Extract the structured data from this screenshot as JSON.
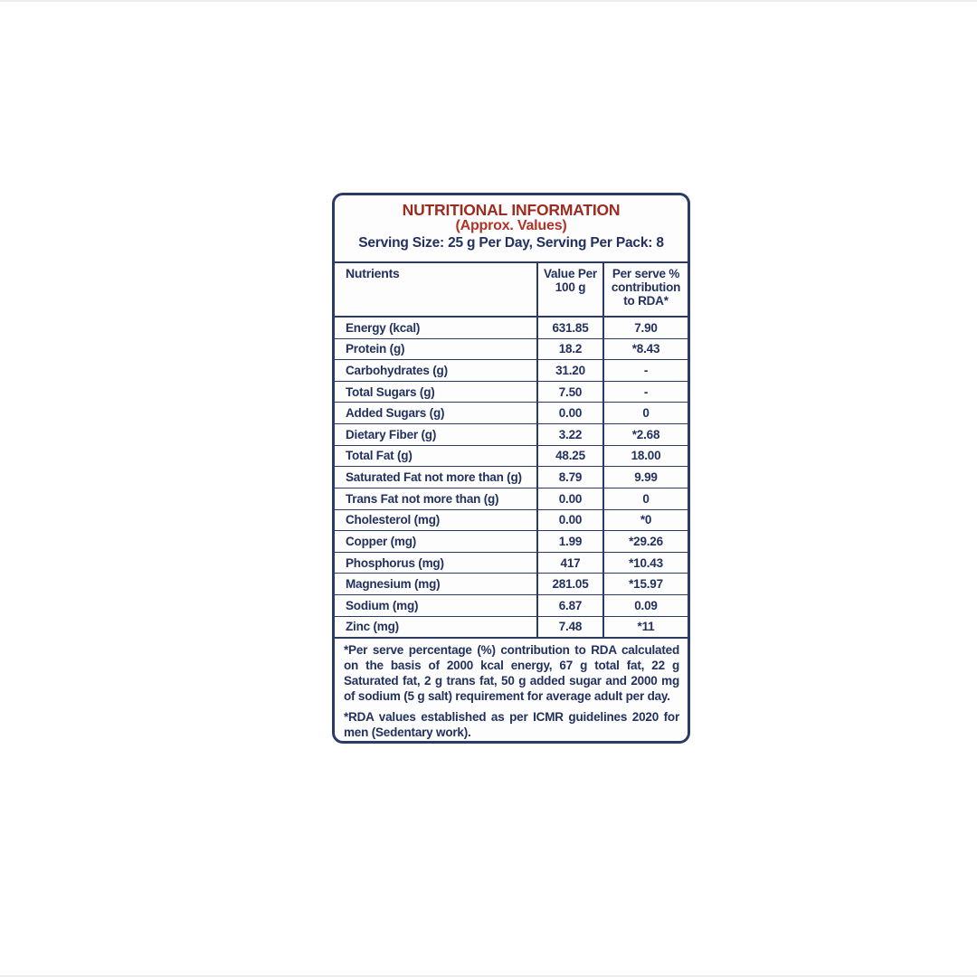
{
  "label": {
    "title": "NUTRITIONAL INFORMATION",
    "subtitle": "(Approx. Values)",
    "serving_line": "Serving Size: 25 g Per Day, Serving Per Pack: 8",
    "header": {
      "nutrients": "Nutrients",
      "value_per": "Value Per\n100 g",
      "per_serve": "Per serve %\ncontribution\nto RDA*"
    },
    "rows": [
      {
        "name": "Energy (kcal)",
        "value": "631.85",
        "rda": "7.90"
      },
      {
        "name": "Protein (g)",
        "value": "18.2",
        "rda": "*8.43"
      },
      {
        "name": "Carbohydrates (g)",
        "value": "31.20",
        "rda": "-"
      },
      {
        "name": "Total Sugars (g)",
        "value": "7.50",
        "rda": "-"
      },
      {
        "name": "Added Sugars (g)",
        "value": "0.00",
        "rda": "0"
      },
      {
        "name": "Dietary Fiber (g)",
        "value": "3.22",
        "rda": "*2.68"
      },
      {
        "name": "Total Fat (g)",
        "value": "48.25",
        "rda": "18.00"
      },
      {
        "name": "Saturated Fat not more than (g)",
        "value": "8.79",
        "rda": "9.99"
      },
      {
        "name": "Trans Fat not more than (g)",
        "value": "0.00",
        "rda": "0"
      },
      {
        "name": "Cholesterol (mg)",
        "value": "0.00",
        "rda": "*0"
      },
      {
        "name": "Copper (mg)",
        "value": "1.99",
        "rda": "*29.26"
      },
      {
        "name": "Phosphorus (mg)",
        "value": "417",
        "rda": "*10.43"
      },
      {
        "name": "Magnesium (mg)",
        "value": "281.05",
        "rda": "*15.97"
      },
      {
        "name": "Sodium (mg)",
        "value": "6.87",
        "rda": "0.09"
      },
      {
        "name": "Zinc (mg)",
        "value": "7.48",
        "rda": "*11"
      }
    ],
    "footnotes": [
      "*Per serve percentage (%) contribution to RDA calculated on the basis of 2000 kcal energy, 67 g total fat, 22 g Saturated fat, 2 g trans fat, 50 g added sugar and 2000 mg of sodium (5 g salt) requirement for average adult per day.",
      "*RDA values established as per ICMR guidelines 2020 for men (Sedentary work)."
    ],
    "colors": {
      "title_red": "#9c2b20",
      "subtitle_red": "#b13327",
      "text_navy": "#22315e",
      "border_navy": "#2c3a66"
    }
  }
}
